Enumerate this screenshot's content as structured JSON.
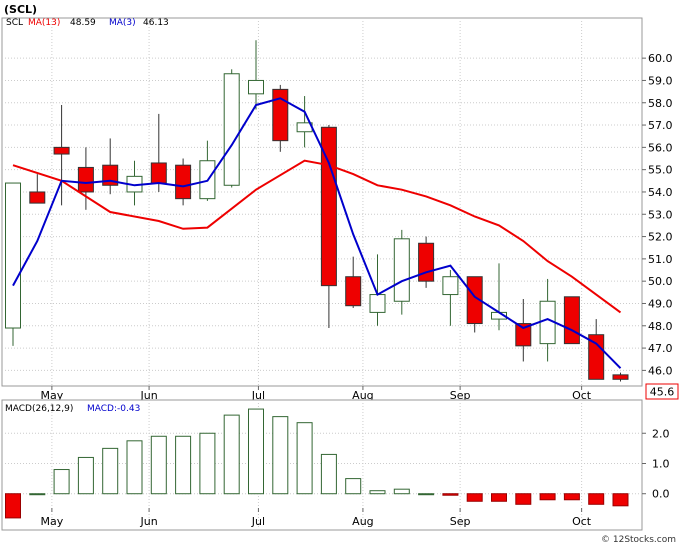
{
  "chart_data": [
    {
      "type": "candlestick",
      "title": "(SCL)",
      "legend": {
        "symbol": "SCL",
        "ma13_label": "MA(13)",
        "ma13_value": "48.59",
        "ma3_label": "MA(3)",
        "ma3_value": "46.13"
      },
      "ylim": [
        45.3,
        61.8
      ],
      "yticks": [
        46.0,
        47.0,
        48.0,
        49.0,
        50.0,
        51.0,
        52.0,
        53.0,
        54.0,
        55.0,
        56.0,
        57.0,
        58.0,
        59.0,
        60.0
      ],
      "ytick_labels": [
        "46.0",
        "47.0",
        "48.0",
        "49.0",
        "50.0",
        "51.0",
        "52.0",
        "53.0",
        "54.0",
        "55.0",
        "56.0",
        "57.0",
        "58.0",
        "59.0",
        "60.0"
      ],
      "last_price_label": "45.6",
      "months": [
        {
          "label": "May",
          "at": 1.6
        },
        {
          "label": "Jun",
          "at": 5.6
        },
        {
          "label": "Jul",
          "at": 10.1
        },
        {
          "label": "Aug",
          "at": 14.4
        },
        {
          "label": "Sep",
          "at": 18.4
        },
        {
          "label": "Oct",
          "at": 23.4
        }
      ],
      "candles": [
        {
          "o": 47.9,
          "h": 54.4,
          "l": 47.1,
          "c": 54.4
        },
        {
          "o": 54.0,
          "h": 54.8,
          "l": 53.5,
          "c": 53.5
        },
        {
          "o": 56.0,
          "h": 57.9,
          "l": 53.4,
          "c": 55.7
        },
        {
          "o": 55.1,
          "h": 56.0,
          "l": 53.2,
          "c": 54.0
        },
        {
          "o": 55.2,
          "h": 56.4,
          "l": 53.9,
          "c": 54.3
        },
        {
          "o": 54.0,
          "h": 55.4,
          "l": 53.4,
          "c": 54.7
        },
        {
          "o": 55.3,
          "h": 57.5,
          "l": 54.0,
          "c": 54.4
        },
        {
          "o": 55.2,
          "h": 55.5,
          "l": 53.4,
          "c": 53.7
        },
        {
          "o": 53.7,
          "h": 56.3,
          "l": 53.6,
          "c": 55.4
        },
        {
          "o": 54.3,
          "h": 59.5,
          "l": 54.2,
          "c": 59.3
        },
        {
          "o": 58.4,
          "h": 60.8,
          "l": 57.7,
          "c": 59.0
        },
        {
          "o": 58.6,
          "h": 58.8,
          "l": 55.8,
          "c": 56.3
        },
        {
          "o": 56.7,
          "h": 58.3,
          "l": 56.0,
          "c": 57.1
        },
        {
          "o": 56.9,
          "h": 57.0,
          "l": 47.9,
          "c": 49.8
        },
        {
          "o": 50.2,
          "h": 51.1,
          "l": 48.8,
          "c": 48.9
        },
        {
          "o": 48.6,
          "h": 51.2,
          "l": 48.0,
          "c": 49.4
        },
        {
          "o": 49.1,
          "h": 52.3,
          "l": 48.5,
          "c": 51.9
        },
        {
          "o": 51.7,
          "h": 52.0,
          "l": 49.7,
          "c": 50.0
        },
        {
          "o": 49.4,
          "h": 50.5,
          "l": 48.0,
          "c": 50.2
        },
        {
          "o": 50.2,
          "h": 50.2,
          "l": 47.7,
          "c": 48.1
        },
        {
          "o": 48.3,
          "h": 50.8,
          "l": 47.8,
          "c": 48.6
        },
        {
          "o": 48.1,
          "h": 49.2,
          "l": 46.4,
          "c": 47.1
        },
        {
          "o": 47.2,
          "h": 50.1,
          "l": 46.4,
          "c": 49.1
        },
        {
          "o": 49.3,
          "h": 49.3,
          "l": 47.2,
          "c": 47.2
        },
        {
          "o": 47.6,
          "h": 48.3,
          "l": 45.6,
          "c": 45.6
        },
        {
          "o": 45.8,
          "h": 45.9,
          "l": 45.5,
          "c": 45.6
        }
      ],
      "ma13": [
        {
          "x": 0,
          "y": 55.2
        },
        {
          "x": 2,
          "y": 54.5
        },
        {
          "x": 4,
          "y": 53.1
        },
        {
          "x": 6,
          "y": 52.7
        },
        {
          "x": 7,
          "y": 52.35
        },
        {
          "x": 8,
          "y": 52.4
        },
        {
          "x": 10,
          "y": 54.1
        },
        {
          "x": 12,
          "y": 55.4
        },
        {
          "x": 13,
          "y": 55.2
        },
        {
          "x": 14,
          "y": 54.8
        },
        {
          "x": 15,
          "y": 54.3
        },
        {
          "x": 16,
          "y": 54.1
        },
        {
          "x": 17,
          "y": 53.8
        },
        {
          "x": 18,
          "y": 53.4
        },
        {
          "x": 19,
          "y": 52.9
        },
        {
          "x": 20,
          "y": 52.5
        },
        {
          "x": 21,
          "y": 51.8
        },
        {
          "x": 22,
          "y": 50.9
        },
        {
          "x": 23,
          "y": 50.2
        },
        {
          "x": 24,
          "y": 49.4
        },
        {
          "x": 25,
          "y": 48.6
        }
      ],
      "ma3": [
        {
          "x": 0,
          "y": 49.8
        },
        {
          "x": 1,
          "y": 51.8
        },
        {
          "x": 2,
          "y": 54.5
        },
        {
          "x": 3,
          "y": 54.4
        },
        {
          "x": 4,
          "y": 54.5
        },
        {
          "x": 5,
          "y": 54.3
        },
        {
          "x": 6,
          "y": 54.4
        },
        {
          "x": 7,
          "y": 54.25
        },
        {
          "x": 8,
          "y": 54.5
        },
        {
          "x": 9,
          "y": 56.1
        },
        {
          "x": 10,
          "y": 57.9
        },
        {
          "x": 11,
          "y": 58.2
        },
        {
          "x": 12,
          "y": 57.6
        },
        {
          "x": 13,
          "y": 55.3
        },
        {
          "x": 14,
          "y": 52.1
        },
        {
          "x": 15,
          "y": 49.4
        },
        {
          "x": 16,
          "y": 50.0
        },
        {
          "x": 17,
          "y": 50.4
        },
        {
          "x": 18,
          "y": 50.7
        },
        {
          "x": 19,
          "y": 49.3
        },
        {
          "x": 20,
          "y": 48.6
        },
        {
          "x": 21,
          "y": 47.9
        },
        {
          "x": 22,
          "y": 48.3
        },
        {
          "x": 23,
          "y": 47.8
        },
        {
          "x": 24,
          "y": 47.2
        },
        {
          "x": 25,
          "y": 46.1
        }
      ]
    },
    {
      "type": "bar",
      "title": "MACD(26,12,9)",
      "legend_text": "MACD:-0.43",
      "ylim": [
        -1.2,
        3.1
      ],
      "yticks": [
        0.0,
        1.0,
        2.0
      ],
      "ytick_labels": [
        "0.0",
        "1.0",
        "2.0"
      ],
      "months": [
        {
          "label": "May",
          "at": 1.6
        },
        {
          "label": "Jun",
          "at": 5.6
        },
        {
          "label": "Jul",
          "at": 10.1
        },
        {
          "label": "Aug",
          "at": 14.4
        },
        {
          "label": "Sep",
          "at": 18.4
        },
        {
          "label": "Oct",
          "at": 23.4
        }
      ],
      "values": [
        -0.8,
        0.0,
        0.8,
        1.2,
        1.5,
        1.75,
        1.9,
        1.9,
        2.0,
        2.6,
        2.8,
        2.55,
        2.35,
        1.3,
        0.5,
        0.1,
        0.15,
        0.0,
        -0.05,
        -0.25,
        -0.25,
        -0.35,
        -0.2,
        -0.2,
        -0.35,
        -0.4
      ],
      "colors": {
        "positive": "#336633",
        "negative": "#ee0000"
      }
    }
  ],
  "footer": {
    "copyright": "© 12Stocks.com"
  },
  "colors": {
    "up_fill": "#ffffff",
    "up_stroke": "#336633",
    "down_fill": "#ee0000",
    "ma13": "#ee0000",
    "ma3": "#0000cc"
  }
}
